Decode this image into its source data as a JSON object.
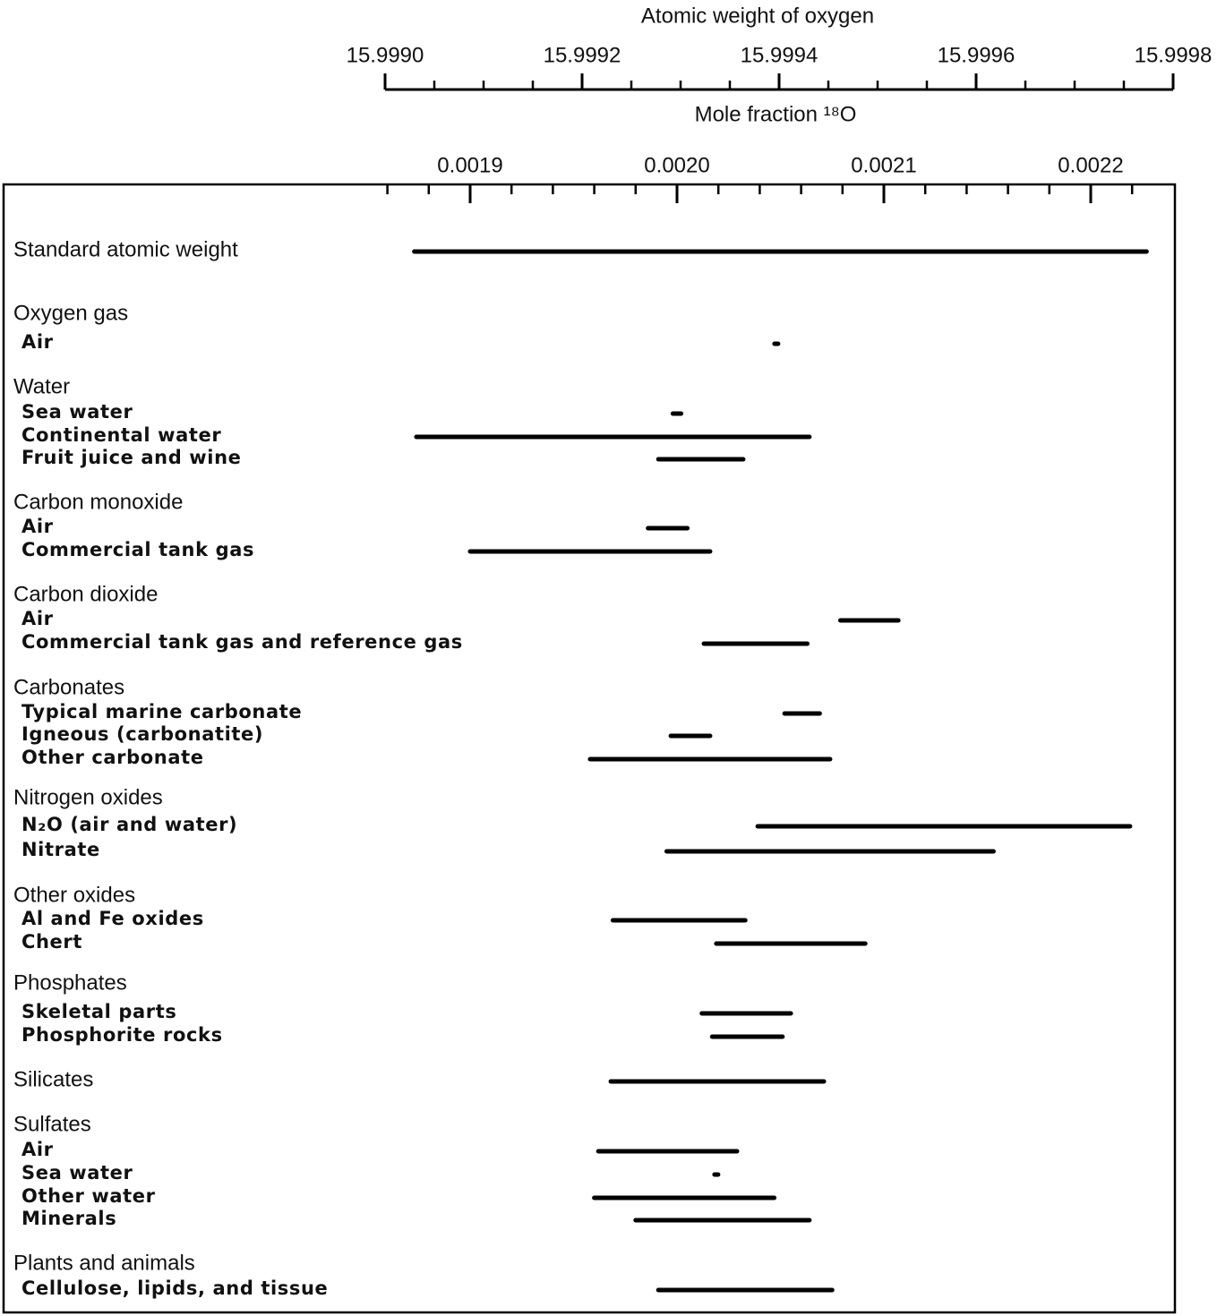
{
  "chart_data": {
    "type": "range",
    "x2_title": "Atomic weight of oxygen",
    "x2lim": [
      15.999,
      15.9998
    ],
    "x2ticks": [
      {
        "value": 15.999,
        "label": "15.9990"
      },
      15.9992,
      15.9994,
      15.9996,
      15.9998
    ],
    "x2_minor_ticks": [
      15.99905,
      15.9991,
      15.99915,
      15.99925,
      15.9993,
      15.99935,
      15.99945,
      15.9995,
      15.99955,
      15.99965,
      15.9997,
      15.99975
    ],
    "x_title": "Mole fraction ¹⁸O",
    "xlim": [
      0.00186,
      0.00224
    ],
    "xticks": [
      0.0019,
      {
        "value": 0.002,
        "label": "0.0020"
      },
      0.0021,
      0.0022
    ],
    "x_minor_ticks": [
      0.00186,
      0.00188,
      0.00192,
      0.00194,
      0.00196,
      0.00198,
      0.00202,
      0.00204,
      0.00206,
      0.00208,
      0.00212,
      0.00214,
      0.00216,
      0.00218,
      0.00222
    ],
    "color": "#000000",
    "rows": [
      {
        "label": "Standard atomic weight",
        "level": "group",
        "low": 0.001873,
        "high": 0.002227
      },
      {
        "label": "Oxygen gas",
        "level": "group"
      },
      {
        "label": "Air",
        "level": "item",
        "low": 0.002048,
        "high": 0.002048
      },
      {
        "label": "Water",
        "level": "group"
      },
      {
        "label": "Sea water",
        "level": "item",
        "low": 0.001998,
        "high": 0.002002
      },
      {
        "label": "Continental water",
        "level": "item",
        "low": 0.001874,
        "high": 0.002064
      },
      {
        "label": "Fruit juice and wine",
        "level": "item",
        "low": 0.001991,
        "high": 0.002032
      },
      {
        "label": "Carbon monoxide",
        "level": "group"
      },
      {
        "label": "Air",
        "level": "item",
        "low": 0.001986,
        "high": 0.002005
      },
      {
        "label": "Commercial tank gas",
        "level": "item",
        "low": 0.0019,
        "high": 0.002016
      },
      {
        "label": "Carbon dioxide",
        "level": "group"
      },
      {
        "label": "Air",
        "level": "item",
        "low": 0.002079,
        "high": 0.002107
      },
      {
        "label": "Commercial tank gas and reference gas",
        "level": "item",
        "low": 0.002013,
        "high": 0.002063
      },
      {
        "label": "Carbonates",
        "level": "group"
      },
      {
        "label": "Typical marine carbonate",
        "level": "item",
        "low": 0.002052,
        "high": 0.002069
      },
      {
        "label": "Igneous (carbonatite)",
        "level": "item",
        "low": 0.001997,
        "high": 0.002016
      },
      {
        "label": "Other carbonate",
        "level": "item",
        "low": 0.001958,
        "high": 0.002074
      },
      {
        "label": "Nitrogen oxides",
        "level": "group"
      },
      {
        "label": "N₂O (air and water)",
        "level": "item",
        "low": 0.002039,
        "high": 0.002219
      },
      {
        "label": "Nitrate",
        "level": "item",
        "low": 0.001995,
        "high": 0.002153
      },
      {
        "label": "Other oxides",
        "level": "group"
      },
      {
        "label": "Al and Fe oxides",
        "level": "item",
        "low": 0.001969,
        "high": 0.002033
      },
      {
        "label": "Chert",
        "level": "item",
        "low": 0.002019,
        "high": 0.002091
      },
      {
        "label": "Phosphates",
        "level": "group"
      },
      {
        "label": "Skeletal parts",
        "level": "item",
        "low": 0.002012,
        "high": 0.002055
      },
      {
        "label": "Phosphorite rocks",
        "level": "item",
        "low": 0.002017,
        "high": 0.002051
      },
      {
        "label": "Silicates",
        "level": "group",
        "low": 0.001968,
        "high": 0.002071
      },
      {
        "label": "Sulfates",
        "level": "group"
      },
      {
        "label": "Air",
        "level": "item",
        "low": 0.001962,
        "high": 0.002029
      },
      {
        "label": "Sea water",
        "level": "item",
        "low": 0.002019,
        "high": 0.002019
      },
      {
        "label": "Other water",
        "level": "item",
        "low": 0.00196,
        "high": 0.002047
      },
      {
        "label": "Minerals",
        "level": "item",
        "low": 0.00198,
        "high": 0.002064
      },
      {
        "label": "Plants and animals",
        "level": "group"
      },
      {
        "label": "Cellulose, lipids, and tissue",
        "level": "item",
        "low": 0.001991,
        "high": 0.002075
      }
    ]
  }
}
